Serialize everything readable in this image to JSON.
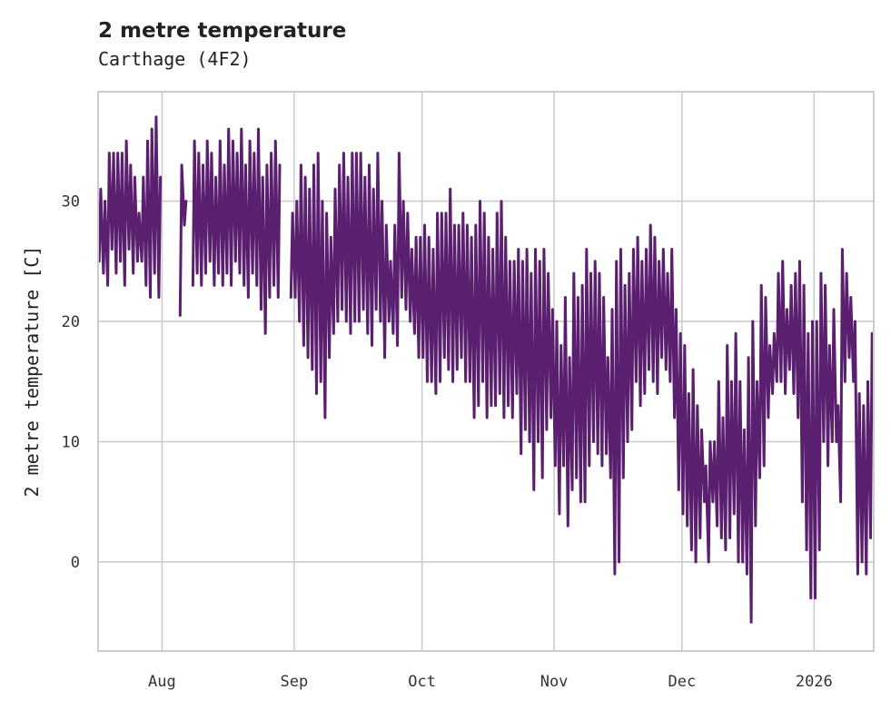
{
  "chart_data": {
    "type": "line",
    "title": "2 metre temperature",
    "subtitle": "Carthage (4F2)",
    "xlabel": "",
    "ylabel": "2 metre temperature [C]",
    "start_date": "2025-07-17",
    "end_date": "2026-01-14",
    "ylim": [
      -7.4,
      39.1
    ],
    "yticks": [
      0,
      10,
      20,
      30
    ],
    "xticks": [
      {
        "date": "2025-08-01",
        "label": "Aug"
      },
      {
        "date": "2025-09-01",
        "label": "Sep"
      },
      {
        "date": "2025-10-01",
        "label": "Oct"
      },
      {
        "date": "2025-11-01",
        "label": "Nov"
      },
      {
        "date": "2025-12-01",
        "label": "Dec"
      },
      {
        "date": "2026-01-01",
        "label": "2026"
      }
    ],
    "grid": true,
    "series_color": "#5a1f6e",
    "series": [
      {
        "name": "2 metre temperature",
        "daily_max": [
          31,
          30,
          34,
          34,
          34,
          34,
          35,
          33,
          32,
          29,
          32,
          35,
          36,
          37,
          32,
          null,
          null,
          null,
          null,
          33,
          30,
          null,
          35,
          34,
          33,
          35,
          34,
          32,
          35,
          33,
          36,
          35,
          34,
          36,
          33,
          35,
          34,
          36,
          32,
          33,
          34,
          35,
          33,
          null,
          null,
          29,
          30,
          33,
          32,
          31,
          33,
          34,
          30,
          29,
          27,
          31,
          33,
          34,
          32,
          34,
          34,
          34,
          32,
          33,
          31,
          34,
          30,
          28,
          25,
          28,
          34,
          30,
          29,
          26,
          27,
          27,
          28,
          27,
          26,
          29,
          29,
          29,
          31,
          28,
          28,
          29,
          28,
          27,
          28,
          30,
          29,
          27,
          26,
          29,
          30,
          27,
          25,
          25,
          26,
          25,
          26,
          24,
          26,
          25,
          26,
          24,
          21,
          20,
          18,
          22,
          17,
          24,
          22,
          23,
          26,
          24,
          25,
          24,
          22,
          17,
          21,
          25,
          26,
          23,
          24,
          26,
          27,
          25,
          26,
          28,
          27,
          25,
          26,
          24,
          26,
          21,
          19,
          18,
          14,
          16,
          13,
          11,
          8,
          10,
          10,
          15,
          12,
          18,
          15,
          19,
          15,
          11,
          17,
          20,
          15,
          23,
          22,
          18,
          19,
          24,
          25,
          21,
          23,
          24,
          25,
          23,
          19,
          20,
          20,
          24,
          23,
          18,
          21,
          13,
          26,
          24,
          22,
          20,
          14,
          13,
          15,
          19
        ],
        "daily_min": [
          25,
          24,
          23,
          26,
          24,
          25,
          23,
          26,
          24,
          25,
          25,
          23,
          22,
          24,
          22,
          null,
          null,
          null,
          null,
          20.5,
          28,
          null,
          23,
          24,
          23,
          24,
          25,
          23,
          24,
          23,
          24,
          23,
          25,
          24,
          23,
          22,
          24,
          23,
          21,
          19,
          22,
          23,
          22,
          null,
          null,
          22,
          22,
          20,
          18,
          17,
          16,
          14,
          15,
          12,
          17,
          19,
          20,
          21,
          20,
          19,
          20,
          20,
          21,
          19,
          18,
          21,
          20,
          17,
          20,
          19,
          18,
          22,
          21,
          20,
          19,
          17,
          17,
          15,
          15,
          14,
          15,
          17,
          16,
          15,
          16,
          17,
          15,
          15,
          12,
          13,
          15,
          12,
          13,
          13,
          14,
          12,
          13,
          12,
          14,
          9,
          11,
          10,
          6,
          10,
          7,
          11,
          12,
          8,
          4,
          8,
          3,
          6,
          7,
          5,
          5,
          8,
          10,
          9,
          8,
          9,
          7,
          -1,
          0,
          7,
          10,
          11,
          15,
          13,
          14,
          16,
          15,
          14,
          17,
          16,
          15,
          12,
          6,
          4,
          3,
          1,
          0,
          2,
          5,
          0,
          5,
          3,
          2,
          1,
          2,
          4,
          0,
          0,
          -1,
          -5,
          3,
          7,
          8,
          12,
          14,
          15,
          15,
          14,
          16,
          14,
          12,
          5,
          1,
          -3,
          -3,
          1,
          10,
          8,
          10,
          10,
          5,
          15,
          17,
          15,
          -1,
          0,
          -1,
          2
        ]
      }
    ]
  }
}
